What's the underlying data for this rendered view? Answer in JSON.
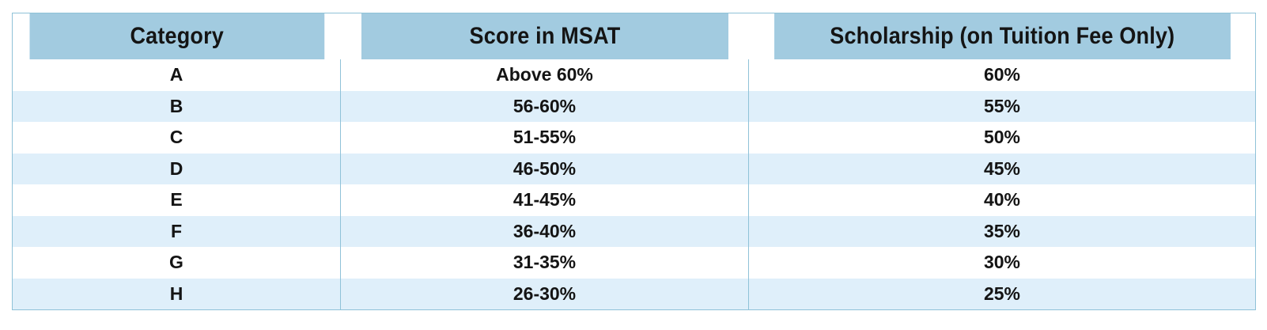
{
  "table": {
    "headers": [
      "Category",
      "Score in MSAT",
      "Scholarship (on Tuition Fee Only)"
    ],
    "rows": [
      [
        "A",
        "Above 60%",
        "60%"
      ],
      [
        "B",
        "56-60%",
        "55%"
      ],
      [
        "C",
        "51-55%",
        "50%"
      ],
      [
        "D",
        "46-50%",
        "45%"
      ],
      [
        "E",
        "41-45%",
        "40%"
      ],
      [
        "F",
        "36-40%",
        "35%"
      ],
      [
        "G",
        "31-35%",
        "30%"
      ],
      [
        "H",
        "26-30%",
        "25%"
      ]
    ]
  },
  "colors": {
    "header_bg": "#a2cbe0",
    "row_alt_bg": "#dfeffa",
    "row_bg": "#ffffff",
    "border": "#8fc2d8",
    "text": "#141414"
  }
}
